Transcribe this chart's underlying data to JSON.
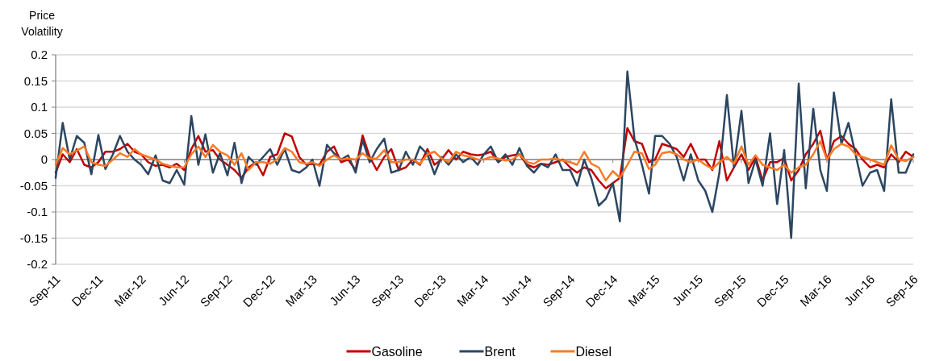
{
  "chart_data": {
    "type": "line",
    "ylabel": "Price Volatility",
    "x": [
      "2011-09-01",
      "2011-09-16",
      "2011-10-01",
      "2011-10-16",
      "2011-11-01",
      "2011-11-16",
      "2011-12-01",
      "2011-12-16",
      "2012-01-01",
      "2012-01-16",
      "2012-02-01",
      "2012-02-16",
      "2012-03-01",
      "2012-03-16",
      "2012-04-01",
      "2012-04-16",
      "2012-05-01",
      "2012-05-16",
      "2012-06-01",
      "2012-06-16",
      "2012-07-01",
      "2012-07-16",
      "2012-08-01",
      "2012-08-16",
      "2012-09-01",
      "2012-09-16",
      "2012-10-01",
      "2012-10-16",
      "2012-11-01",
      "2012-11-16",
      "2012-12-01",
      "2012-12-16",
      "2013-01-01",
      "2013-01-16",
      "2013-02-01",
      "2013-02-16",
      "2013-03-01",
      "2013-03-16",
      "2013-04-01",
      "2013-04-16",
      "2013-05-01",
      "2013-05-16",
      "2013-06-01",
      "2013-06-16",
      "2013-07-01",
      "2013-07-16",
      "2013-08-01",
      "2013-08-16",
      "2013-09-01",
      "2013-09-16",
      "2013-10-01",
      "2013-10-16",
      "2013-11-01",
      "2013-11-16",
      "2013-12-01",
      "2013-12-16",
      "2014-01-01",
      "2014-01-16",
      "2014-02-01",
      "2014-02-16",
      "2014-03-01",
      "2014-03-16",
      "2014-04-01",
      "2014-04-16",
      "2014-05-01",
      "2014-05-16",
      "2014-06-01",
      "2014-06-16",
      "2014-07-01",
      "2014-07-16",
      "2014-08-01",
      "2014-08-16",
      "2014-09-01",
      "2014-09-16",
      "2014-10-01",
      "2014-10-16",
      "2014-11-01",
      "2014-11-16",
      "2014-12-01",
      "2014-12-16",
      "2015-01-01",
      "2015-01-16",
      "2015-02-01",
      "2015-02-16",
      "2015-03-01",
      "2015-03-16",
      "2015-04-01",
      "2015-04-16",
      "2015-05-01",
      "2015-05-16",
      "2015-06-01",
      "2015-06-16",
      "2015-07-01",
      "2015-07-16",
      "2015-08-01",
      "2015-08-16",
      "2015-09-01",
      "2015-09-16",
      "2015-10-01",
      "2015-10-16",
      "2015-11-01",
      "2015-11-16",
      "2015-12-01",
      "2015-12-16",
      "2016-01-01",
      "2016-01-16",
      "2016-02-01",
      "2016-02-16",
      "2016-03-01",
      "2016-03-16",
      "2016-04-01",
      "2016-04-16",
      "2016-05-01",
      "2016-05-16",
      "2016-06-01",
      "2016-06-16",
      "2016-07-01",
      "2016-07-16",
      "2016-08-01",
      "2016-08-16",
      "2016-09-01"
    ],
    "series": [
      {
        "name": "Gasoline",
        "color": "#c00000",
        "values": [
          -0.025,
          0.01,
          -0.005,
          0.02,
          -0.01,
          -0.015,
          -0.005,
          0.015,
          0.015,
          0.02,
          0.03,
          0.015,
          0.01,
          -0.005,
          -0.012,
          -0.01,
          -0.015,
          -0.008,
          -0.02,
          0.02,
          0.045,
          0.015,
          0.018,
          0.0,
          -0.01,
          -0.02,
          -0.035,
          -0.015,
          -0.005,
          -0.03,
          0.005,
          0.01,
          0.05,
          0.044,
          0.005,
          -0.01,
          -0.008,
          -0.01,
          0.015,
          0.025,
          -0.005,
          0.0,
          -0.02,
          0.046,
          0.005,
          -0.02,
          0.005,
          0.02,
          -0.02,
          -0.015,
          0.0,
          -0.01,
          0.02,
          -0.01,
          0.0,
          0.018,
          0.0,
          0.015,
          0.01,
          0.008,
          0.01,
          0.015,
          -0.005,
          0.005,
          0.008,
          0.01,
          -0.01,
          -0.015,
          -0.008,
          -0.01,
          -0.005,
          0.0,
          -0.015,
          -0.025,
          -0.015,
          -0.02,
          -0.04,
          -0.055,
          -0.045,
          -0.035,
          0.06,
          0.035,
          0.03,
          -0.005,
          0.0,
          0.03,
          0.025,
          0.02,
          0.005,
          0.03,
          0.0,
          0.0,
          -0.02,
          0.035,
          -0.04,
          -0.015,
          0.01,
          -0.02,
          0.005,
          -0.04,
          -0.005,
          -0.005,
          0.003,
          -0.04,
          -0.02,
          0.01,
          0.03,
          0.055,
          0.0,
          0.035,
          0.045,
          0.03,
          0.02,
          0.0,
          -0.015,
          -0.01,
          -0.015,
          0.01,
          -0.005,
          0.015,
          0.005
        ]
      },
      {
        "name": "Brent",
        "color": "#2c4661",
        "values": [
          -0.035,
          0.07,
          0.0,
          0.045,
          0.032,
          -0.028,
          0.047,
          -0.018,
          0.01,
          0.045,
          0.015,
          0.0,
          -0.01,
          -0.028,
          0.008,
          -0.04,
          -0.045,
          -0.02,
          -0.048,
          0.083,
          -0.01,
          0.048,
          -0.025,
          0.012,
          -0.03,
          0.032,
          -0.045,
          0.005,
          -0.01,
          0.005,
          0.02,
          -0.01,
          0.02,
          -0.02,
          -0.025,
          -0.015,
          0.0,
          -0.05,
          0.028,
          0.012,
          0.0,
          0.008,
          -0.025,
          0.037,
          -0.005,
          0.02,
          0.04,
          -0.025,
          -0.02,
          0.015,
          -0.01,
          0.025,
          0.01,
          -0.028,
          0.005,
          -0.01,
          0.01,
          -0.005,
          0.005,
          -0.01,
          0.01,
          0.025,
          -0.005,
          0.01,
          -0.01,
          0.022,
          -0.012,
          -0.025,
          -0.008,
          -0.015,
          0.01,
          -0.02,
          -0.02,
          -0.05,
          0.0,
          -0.035,
          -0.088,
          -0.075,
          -0.045,
          -0.118,
          0.168,
          0.04,
          -0.01,
          -0.065,
          0.045,
          0.045,
          0.03,
          0.005,
          -0.04,
          0.01,
          -0.04,
          -0.06,
          -0.1,
          -0.025,
          0.123,
          -0.015,
          0.093,
          -0.045,
          0.0,
          -0.05,
          0.05,
          -0.085,
          0.018,
          -0.15,
          0.145,
          -0.055,
          0.097,
          -0.02,
          -0.06,
          0.128,
          0.03,
          0.07,
          0.01,
          -0.05,
          -0.025,
          -0.02,
          -0.06,
          0.115,
          -0.025,
          -0.025,
          0.01
        ]
      },
      {
        "name": "Diesel",
        "color": "#f97a24",
        "values": [
          -0.01,
          0.022,
          0.01,
          0.017,
          0.025,
          -0.005,
          -0.01,
          -0.012,
          0.0,
          0.012,
          0.005,
          0.02,
          0.01,
          0.005,
          0.0,
          -0.008,
          -0.012,
          -0.015,
          -0.015,
          0.01,
          0.025,
          0.005,
          0.028,
          0.015,
          0.008,
          -0.01,
          0.012,
          -0.02,
          -0.005,
          -0.005,
          -0.008,
          0.0,
          0.022,
          0.015,
          -0.005,
          -0.008,
          -0.005,
          -0.012,
          0.0,
          0.008,
          0.0,
          0.002,
          0.0,
          0.012,
          0.002,
          0.002,
          0.018,
          -0.005,
          -0.005,
          0.0,
          0.0,
          -0.008,
          0.01,
          0.015,
          0.002,
          -0.005,
          0.015,
          0.008,
          0.005,
          0.0,
          0.0,
          0.005,
          0.002,
          -0.002,
          0.0,
          0.01,
          -0.005,
          -0.008,
          0.0,
          0.0,
          0.002,
          -0.002,
          -0.005,
          -0.01,
          0.015,
          -0.008,
          -0.015,
          -0.04,
          -0.022,
          -0.035,
          -0.01,
          0.015,
          0.012,
          -0.018,
          -0.01,
          0.012,
          0.015,
          0.01,
          0.0,
          -0.005,
          0.0,
          -0.01,
          -0.018,
          -0.005,
          0.005,
          -0.008,
          0.025,
          -0.01,
          0.008,
          -0.01,
          -0.015,
          -0.02,
          -0.01,
          -0.025,
          -0.015,
          -0.01,
          0.01,
          0.035,
          0.0,
          0.02,
          0.03,
          0.025,
          0.01,
          0.005,
          0.0,
          -0.005,
          -0.01,
          0.027,
          0.0,
          -0.003,
          0.005
        ]
      }
    ],
    "xlim": [
      "2011-09-01",
      "2016-09-01"
    ],
    "xticks": [
      {
        "value": "2011-09-01",
        "label": "Sep-11"
      },
      {
        "value": "2011-12-01",
        "label": "Dec-11"
      },
      {
        "value": "2012-03-01",
        "label": "Mar-12"
      },
      {
        "value": "2012-06-01",
        "label": "Jun-12"
      },
      {
        "value": "2012-09-01",
        "label": "Sep-12"
      },
      {
        "value": "2012-12-01",
        "label": "Dec-12"
      },
      {
        "value": "2013-03-01",
        "label": "Mar-13"
      },
      {
        "value": "2013-06-01",
        "label": "Jun-13"
      },
      {
        "value": "2013-09-01",
        "label": "Sep-13"
      },
      {
        "value": "2013-12-01",
        "label": "Dec-13"
      },
      {
        "value": "2014-03-01",
        "label": "Mar-14"
      },
      {
        "value": "2014-06-01",
        "label": "Jun-14"
      },
      {
        "value": "2014-09-01",
        "label": "Sep-14"
      },
      {
        "value": "2014-12-01",
        "label": "Dec-14"
      },
      {
        "value": "2015-03-01",
        "label": "Mar-15"
      },
      {
        "value": "2015-06-01",
        "label": "Jun-15"
      },
      {
        "value": "2015-09-01",
        "label": "Sep-15"
      },
      {
        "value": "2015-12-01",
        "label": "Dec-15"
      },
      {
        "value": "2016-03-01",
        "label": "Mar-16"
      },
      {
        "value": "2016-06-01",
        "label": "Jun-16"
      },
      {
        "value": "2016-09-01",
        "label": "Sep-16"
      }
    ],
    "ylim": [
      -0.2,
      0.2
    ],
    "yticks": [
      -0.2,
      -0.15,
      -0.1,
      -0.05,
      0,
      0.05,
      0.1,
      0.15,
      0.2
    ],
    "grid": "y",
    "legend": "bottom"
  }
}
